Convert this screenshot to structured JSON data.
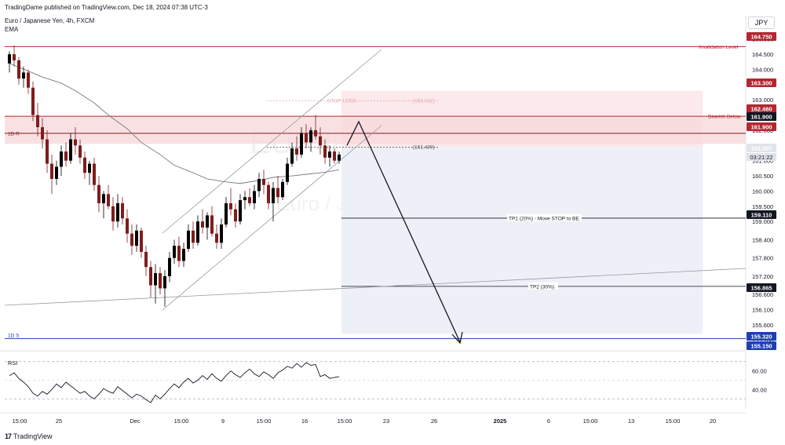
{
  "header": {
    "published": "TradingDame published on TradingView.com, Dec 18, 2024 07:38 UTC-3",
    "symbol": "Euro / Japanese Yen, 4h, FXCM",
    "indicator": "EMA",
    "currency": "JPY"
  },
  "watermark": {
    "symbol": "EURJPY, 4h",
    "name": "Euro / Japanese Yen"
  },
  "branding": {
    "logo_text": "TradingView",
    "logo_icon": "tradingview-logo-icon"
  },
  "colors": {
    "up": "#000000",
    "down": "#7f1d1d",
    "resistance": "#b22833",
    "support": "#1e40af",
    "target_zone": "#eef0f8",
    "stop_zone": "#fbe9eb",
    "ema": "#787b86"
  },
  "chart_data": {
    "type": "candlestick",
    "timeframe": "4h",
    "price_axis": {
      "ticks": [
        "165.000",
        "164.500",
        "164.000",
        "163.500",
        "163.000",
        "162.500",
        "162.000",
        "161.500",
        "161.000",
        "160.500",
        "160.000",
        "159.500",
        "159.000",
        "158.400",
        "157.800",
        "157.200",
        "156.600",
        "156.100",
        "155.600",
        "155.100"
      ],
      "ylim": [
        154.9,
        165.2
      ]
    },
    "time_axis": {
      "ticks": [
        {
          "label": "15:00",
          "bold": false
        },
        {
          "label": "25",
          "bold": false
        },
        {
          "label": "Dec",
          "bold": false
        },
        {
          "label": "15:00",
          "bold": false
        },
        {
          "label": "9",
          "bold": false
        },
        {
          "label": "15:00",
          "bold": false
        },
        {
          "label": "16",
          "bold": false
        },
        {
          "label": "15:00",
          "bold": false
        },
        {
          "label": "23",
          "bold": false
        },
        {
          "label": "26",
          "bold": false
        },
        {
          "label": "2025",
          "bold": true
        },
        {
          "label": "6",
          "bold": false
        },
        {
          "label": "15:00",
          "bold": false
        },
        {
          "label": "13",
          "bold": false
        },
        {
          "label": "15:00",
          "bold": false
        },
        {
          "label": "20",
          "bold": false
        }
      ]
    },
    "levels": [
      {
        "name": "Invalidation Level",
        "label": "Invalidation Level",
        "price": "164.750",
        "color": "#b22833"
      },
      {
        "name": "stop-loss",
        "label": "STOP LOSS",
        "price": "163.300",
        "bracket": "(163.012)",
        "color": "#b22833"
      },
      {
        "name": "bearish-below",
        "label": "Bearish Below",
        "price": "162.460",
        "color": "#b22833"
      },
      {
        "name": "1d-resistance",
        "label": "1D R",
        "price": "161.900",
        "color": "#7f1d1d"
      },
      {
        "name": "entry",
        "label": "",
        "price": "161.439",
        "bracket": "(161.439)",
        "color": "#555555"
      },
      {
        "name": "tp1",
        "label": "TP1 (20%) - Move STOP to BE",
        "price": "159.110",
        "color": "#131722"
      },
      {
        "name": "tp2",
        "label": "TP2 (30%)",
        "price": "156.865",
        "color": "#131722"
      },
      {
        "name": "1d-support",
        "label": "1D S",
        "price": "155.150",
        "color": "#1e40af"
      }
    ],
    "price_tags": [
      {
        "price": "164.750",
        "color": "#b22833"
      },
      {
        "price": "163.300",
        "color": "#b22833"
      },
      {
        "price": "162.460",
        "color": "#b22833"
      },
      {
        "price": "161.900",
        "color": "#131722"
      },
      {
        "price": "161.900",
        "color": "#b22833"
      },
      {
        "price": "161.207",
        "color": "#e0e3eb",
        "dark_text": true
      },
      {
        "price": "155.320",
        "color": "#1e40af"
      },
      {
        "price": "155.150",
        "color": "#1e40af"
      },
      {
        "price": "159.110",
        "color": "#131722"
      },
      {
        "price": "156.865",
        "color": "#131722"
      }
    ],
    "countdown": "03:21:22",
    "candles": [
      [
        164.2,
        164.6,
        163.9,
        164.5
      ],
      [
        164.5,
        164.8,
        164.1,
        164.3
      ],
      [
        164.3,
        164.4,
        163.5,
        163.7
      ],
      [
        163.7,
        164.1,
        163.4,
        163.9
      ],
      [
        163.9,
        164.0,
        163.2,
        163.4
      ],
      [
        163.4,
        163.6,
        162.3,
        162.5
      ],
      [
        162.5,
        162.9,
        161.8,
        162.1
      ],
      [
        162.1,
        162.4,
        161.4,
        161.7
      ],
      [
        161.7,
        162.0,
        160.6,
        160.9
      ],
      [
        160.9,
        161.2,
        159.9,
        160.4
      ],
      [
        160.4,
        161.0,
        160.2,
        160.8
      ],
      [
        160.8,
        161.5,
        160.5,
        161.3
      ],
      [
        161.3,
        161.6,
        160.8,
        161.0
      ],
      [
        161.0,
        161.9,
        160.9,
        161.7
      ],
      [
        161.7,
        162.1,
        161.2,
        161.5
      ],
      [
        161.5,
        161.7,
        160.9,
        161.1
      ],
      [
        161.1,
        161.3,
        160.4,
        160.6
      ],
      [
        160.6,
        161.0,
        160.2,
        160.9
      ],
      [
        160.9,
        161.1,
        160.0,
        160.2
      ],
      [
        160.2,
        160.5,
        159.3,
        159.6
      ],
      [
        159.6,
        160.0,
        159.1,
        159.9
      ],
      [
        159.9,
        160.2,
        159.4,
        159.5
      ],
      [
        159.5,
        159.8,
        158.7,
        159.0
      ],
      [
        159.0,
        159.9,
        158.8,
        159.6
      ],
      [
        159.6,
        159.8,
        158.9,
        159.1
      ],
      [
        159.1,
        159.4,
        158.3,
        158.6
      ],
      [
        158.6,
        158.9,
        157.9,
        158.2
      ],
      [
        158.2,
        158.9,
        158.0,
        158.7
      ],
      [
        158.7,
        158.8,
        157.8,
        158.0
      ],
      [
        158.0,
        158.2,
        157.2,
        157.5
      ],
      [
        157.5,
        157.7,
        156.5,
        156.9
      ],
      [
        156.9,
        157.6,
        156.3,
        157.3
      ],
      [
        157.3,
        157.5,
        156.6,
        156.8
      ],
      [
        156.8,
        157.4,
        156.2,
        157.2
      ],
      [
        157.2,
        158.0,
        157.0,
        157.8
      ],
      [
        157.8,
        158.4,
        157.6,
        158.2
      ],
      [
        158.2,
        158.5,
        157.5,
        157.7
      ],
      [
        157.7,
        158.3,
        157.5,
        158.1
      ],
      [
        158.1,
        158.9,
        158.0,
        158.7
      ],
      [
        158.7,
        159.0,
        158.1,
        158.3
      ],
      [
        158.3,
        159.2,
        158.2,
        159.0
      ],
      [
        159.0,
        159.4,
        158.6,
        158.8
      ],
      [
        158.8,
        159.3,
        158.4,
        159.2
      ],
      [
        159.2,
        159.5,
        158.5,
        158.6
      ],
      [
        158.6,
        158.9,
        158.1,
        158.3
      ],
      [
        158.3,
        159.1,
        158.1,
        158.9
      ],
      [
        158.9,
        159.8,
        158.8,
        159.6
      ],
      [
        159.6,
        160.1,
        159.2,
        159.4
      ],
      [
        159.4,
        159.6,
        158.8,
        159.0
      ],
      [
        159.0,
        159.9,
        158.9,
        159.7
      ],
      [
        159.7,
        160.0,
        159.4,
        159.8
      ],
      [
        159.8,
        160.1,
        159.5,
        159.6
      ],
      [
        159.6,
        160.2,
        159.4,
        160.0
      ],
      [
        160.0,
        160.6,
        159.8,
        160.4
      ],
      [
        160.4,
        160.7,
        159.9,
        160.2
      ],
      [
        160.2,
        160.3,
        159.4,
        159.6
      ],
      [
        159.6,
        160.3,
        159.0,
        160.1
      ],
      [
        160.1,
        160.5,
        159.6,
        159.8
      ],
      [
        159.8,
        160.4,
        159.7,
        160.3
      ],
      [
        160.3,
        161.1,
        160.2,
        160.9
      ],
      [
        160.9,
        161.6,
        160.8,
        161.4
      ],
      [
        161.4,
        161.8,
        161.0,
        161.2
      ],
      [
        161.2,
        162.1,
        161.1,
        161.9
      ],
      [
        161.9,
        162.2,
        161.4,
        161.6
      ],
      [
        161.6,
        162.1,
        161.3,
        162.0
      ],
      [
        162.0,
        162.5,
        161.7,
        161.8
      ],
      [
        161.8,
        162.1,
        161.2,
        161.5
      ],
      [
        161.5,
        161.7,
        160.9,
        161.1
      ],
      [
        161.1,
        161.5,
        160.8,
        161.3
      ],
      [
        161.3,
        161.4,
        160.9,
        161.0
      ],
      [
        161.0,
        161.3,
        160.9,
        161.2
      ]
    ],
    "ema": [
      164.2,
      163.95,
      163.75,
      163.55,
      163.3,
      162.9,
      162.5,
      162.05,
      161.6,
      161.2,
      160.85,
      160.6,
      160.4,
      160.3,
      160.25,
      160.35,
      160.45,
      160.5,
      160.55,
      160.62,
      160.7
    ],
    "rsi": {
      "label": "RSI",
      "ticks": [
        "60.00",
        "40.00"
      ],
      "upper": 70,
      "lower": 30,
      "range": [
        20,
        80
      ],
      "values": [
        55,
        58,
        52,
        48,
        43,
        36,
        33,
        38,
        35,
        40,
        46,
        42,
        48,
        44,
        40,
        36,
        38,
        33,
        30,
        35,
        41,
        38,
        36,
        43,
        39,
        35,
        31,
        35,
        33,
        29,
        26,
        34,
        30,
        35,
        41,
        46,
        42,
        48,
        52,
        47,
        50,
        55,
        51,
        57,
        52,
        49,
        55,
        60,
        56,
        53,
        58,
        62,
        57,
        54,
        59,
        56,
        52,
        58,
        61,
        65,
        63,
        68,
        64,
        69,
        66,
        67,
        54,
        56,
        52,
        53,
        54
      ]
    }
  }
}
